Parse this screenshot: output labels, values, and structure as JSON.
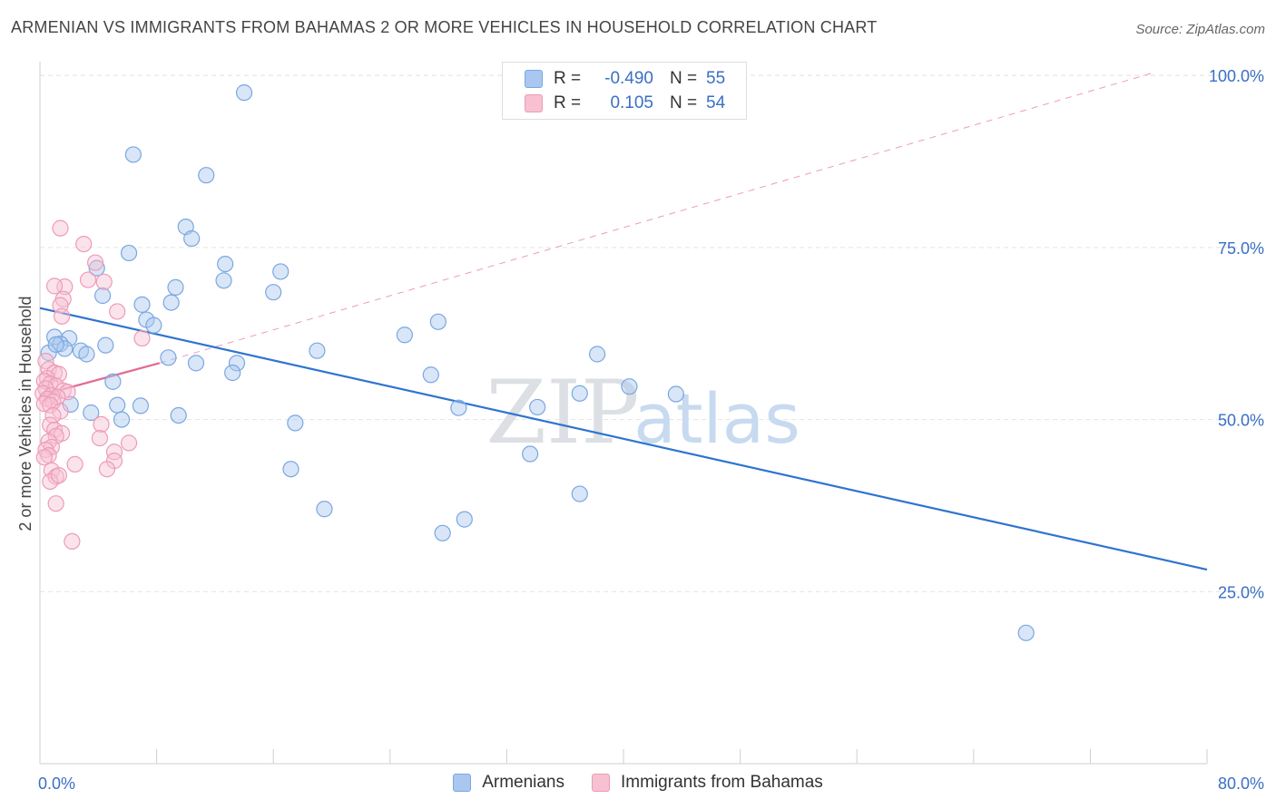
{
  "title": "ARMENIAN VS IMMIGRANTS FROM BAHAMAS 2 OR MORE VEHICLES IN HOUSEHOLD CORRELATION CHART",
  "source": "Source: ZipAtlas.com",
  "watermark": {
    "zip": "ZIP",
    "atlas": "atlas"
  },
  "legend": {
    "rows": [
      {
        "r_label": "R =",
        "r_value": "-0.490",
        "n_label": "N =",
        "n_value": "55"
      },
      {
        "r_label": "R =",
        "r_value": "0.105",
        "n_label": "N =",
        "n_value": "54"
      }
    ]
  },
  "chart_data": {
    "type": "scatter",
    "title": "ARMENIAN VS IMMIGRANTS FROM BAHAMAS 2 OR MORE VEHICLES IN HOUSEHOLD CORRELATION CHART",
    "xlabel": "",
    "ylabel": "2 or more Vehicles in Household",
    "xlim": [
      0,
      80
    ],
    "ylim": [
      0,
      102
    ],
    "x_tick_labels": [
      "0.0%",
      "80.0%"
    ],
    "y_ticks": [
      25,
      50,
      75,
      100
    ],
    "y_tick_labels": [
      "25.0%",
      "50.0%",
      "75.0%",
      "100.0%"
    ],
    "grid": true,
    "legend_position": "bottom",
    "series": [
      {
        "name": "Armenians",
        "color": "#7aa7e0",
        "fill": "#a9c7ef",
        "trend_color": "#2e74d0",
        "trend": {
          "x": [
            0,
            80
          ],
          "y": [
            66.2,
            28.2
          ]
        },
        "points": [
          [
            14.0,
            97.5
          ],
          [
            6.4,
            88.5
          ],
          [
            11.4,
            85.5
          ],
          [
            10.0,
            78.0
          ],
          [
            10.4,
            76.3
          ],
          [
            6.1,
            74.2
          ],
          [
            3.9,
            72.0
          ],
          [
            12.7,
            72.6
          ],
          [
            16.5,
            71.5
          ],
          [
            12.6,
            70.2
          ],
          [
            9.3,
            69.2
          ],
          [
            4.3,
            68.0
          ],
          [
            16.0,
            68.5
          ],
          [
            9.0,
            67.0
          ],
          [
            7.0,
            66.7
          ],
          [
            7.3,
            64.5
          ],
          [
            7.8,
            63.7
          ],
          [
            27.3,
            64.2
          ],
          [
            25.0,
            62.3
          ],
          [
            1.0,
            62.0
          ],
          [
            2.0,
            61.8
          ],
          [
            1.4,
            61.0
          ],
          [
            1.7,
            60.3
          ],
          [
            4.5,
            60.8
          ],
          [
            2.8,
            60.0
          ],
          [
            0.6,
            59.7
          ],
          [
            19.0,
            60.0
          ],
          [
            3.2,
            59.5
          ],
          [
            38.2,
            59.5
          ],
          [
            8.8,
            59.0
          ],
          [
            10.7,
            58.2
          ],
          [
            13.5,
            58.2
          ],
          [
            13.2,
            56.8
          ],
          [
            26.8,
            56.5
          ],
          [
            5.0,
            55.5
          ],
          [
            40.4,
            54.8
          ],
          [
            37.0,
            53.8
          ],
          [
            43.6,
            53.7
          ],
          [
            2.1,
            52.2
          ],
          [
            5.3,
            52.1
          ],
          [
            6.9,
            52.0
          ],
          [
            28.7,
            51.7
          ],
          [
            34.1,
            51.8
          ],
          [
            3.5,
            51.0
          ],
          [
            9.5,
            50.6
          ],
          [
            5.6,
            50.0
          ],
          [
            17.5,
            49.5
          ],
          [
            33.6,
            45.0
          ],
          [
            17.2,
            42.8
          ],
          [
            37.0,
            39.2
          ],
          [
            19.5,
            37.0
          ],
          [
            29.1,
            35.5
          ],
          [
            27.6,
            33.5
          ],
          [
            67.6,
            19.0
          ],
          [
            1.1,
            60.9
          ]
        ]
      },
      {
        "name": "Immigrants from Bahamas",
        "color": "#ee9bb7",
        "fill": "#f7c1d2",
        "trend_color": "#e36a93",
        "trend": {
          "x": [
            0,
            8.2
          ],
          "y": [
            53.5,
            58.2
          ]
        },
        "trend_extension": {
          "x": [
            8.2,
            76.5
          ],
          "y": [
            58.2,
            100.5
          ]
        },
        "points": [
          [
            1.4,
            77.8
          ],
          [
            3.0,
            75.5
          ],
          [
            3.8,
            72.8
          ],
          [
            4.4,
            70.0
          ],
          [
            3.3,
            70.3
          ],
          [
            1.7,
            69.3
          ],
          [
            1.0,
            69.4
          ],
          [
            1.6,
            67.5
          ],
          [
            1.4,
            66.6
          ],
          [
            5.3,
            65.7
          ],
          [
            1.5,
            65.0
          ],
          [
            7.0,
            61.8
          ],
          [
            0.4,
            58.5
          ],
          [
            0.6,
            57.3
          ],
          [
            1.0,
            56.8
          ],
          [
            1.3,
            56.6
          ],
          [
            0.5,
            56.0
          ],
          [
            0.3,
            55.6
          ],
          [
            0.7,
            55.2
          ],
          [
            1.1,
            54.9
          ],
          [
            0.4,
            54.5
          ],
          [
            1.6,
            54.2
          ],
          [
            1.9,
            54.0
          ],
          [
            0.2,
            53.8
          ],
          [
            0.8,
            53.5
          ],
          [
            1.2,
            53.3
          ],
          [
            0.5,
            53.0
          ],
          [
            0.9,
            52.6
          ],
          [
            0.3,
            52.3
          ],
          [
            0.7,
            52.1
          ],
          [
            1.4,
            51.2
          ],
          [
            0.9,
            50.6
          ],
          [
            4.2,
            49.3
          ],
          [
            0.7,
            49.2
          ],
          [
            1.0,
            48.5
          ],
          [
            1.5,
            48.0
          ],
          [
            1.1,
            47.6
          ],
          [
            4.1,
            47.3
          ],
          [
            6.1,
            46.6
          ],
          [
            0.6,
            46.8
          ],
          [
            0.8,
            46.0
          ],
          [
            0.4,
            45.6
          ],
          [
            5.1,
            45.3
          ],
          [
            0.6,
            44.8
          ],
          [
            0.3,
            44.5
          ],
          [
            5.1,
            44.0
          ],
          [
            2.4,
            43.5
          ],
          [
            4.6,
            42.8
          ],
          [
            0.8,
            42.6
          ],
          [
            1.1,
            41.7
          ],
          [
            0.7,
            41.0
          ],
          [
            1.1,
            37.8
          ],
          [
            2.2,
            32.3
          ],
          [
            1.3,
            41.9
          ]
        ]
      }
    ]
  }
}
